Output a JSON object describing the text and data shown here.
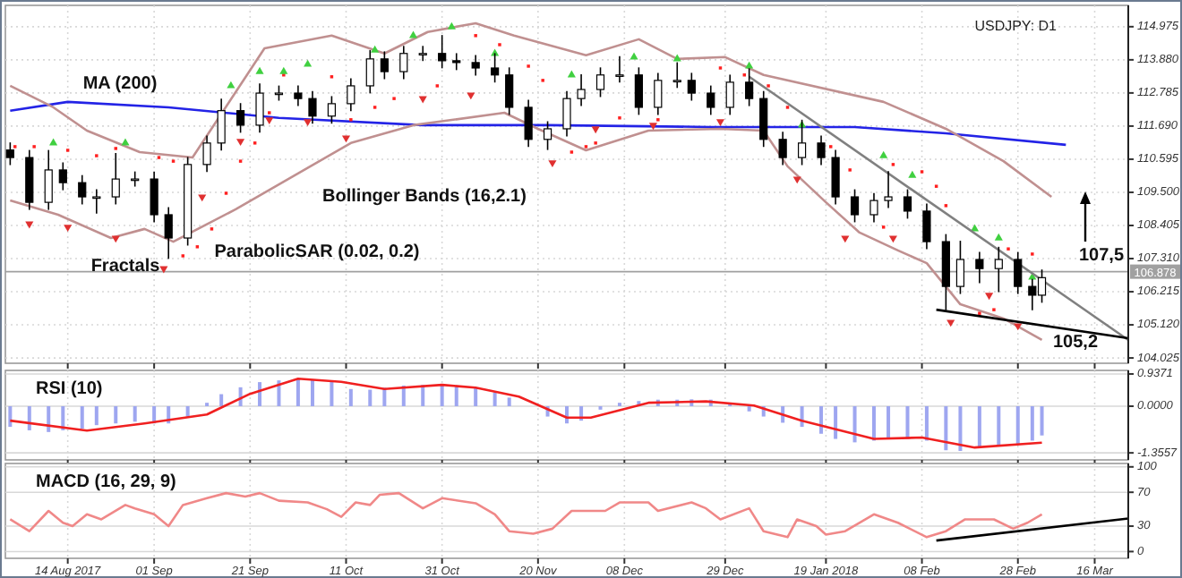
{
  "chart_data": [
    {
      "type": "candlestick",
      "title": "USDJPY: D1",
      "tick_labels": "y",
      "grid": true,
      "xlim": [
        "2017-08-01",
        "2018-03-23"
      ],
      "ylim": [
        103.85,
        115.68
      ],
      "yticks": [
        104.025,
        {
          "value": 105.12,
          "label": "105.120"
        },
        106.215,
        {
          "value": 107.31,
          "label": "107.310"
        },
        108.405,
        {
          "value": 109.5,
          "label": "109.500"
        },
        110.595,
        {
          "value": 111.69,
          "label": "111.690"
        },
        112.785,
        {
          "value": 113.88,
          "label": "113.880"
        },
        114.975
      ],
      "xticks": [
        {
          "value": "2017-08-14",
          "label": null
        },
        {
          "value": "2017-09-01",
          "label": null
        },
        {
          "value": "2017-09-21",
          "label": null
        },
        {
          "value": "2017-10-11",
          "label": null
        },
        {
          "value": "2017-10-31",
          "label": null
        },
        {
          "value": "2017-11-20",
          "label": null
        },
        {
          "value": "2017-12-08",
          "label": null
        },
        {
          "value": "2017-12-29",
          "label": null
        },
        {
          "value": "2018-01-19",
          "label": null
        },
        {
          "value": "2018-02-08",
          "label": null
        },
        {
          "value": "2018-02-28",
          "label": null
        },
        {
          "value": "2018-03-16",
          "label": null
        }
      ],
      "x": [
        "2017-08-02",
        "2017-08-06",
        "2017-08-10",
        "2017-08-13",
        "2017-08-17",
        "2017-08-20",
        "2017-08-24",
        "2017-08-28",
        "2017-09-01",
        "2017-09-04",
        "2017-09-08",
        "2017-09-12",
        "2017-09-15",
        "2017-09-19",
        "2017-09-23",
        "2017-09-27",
        "2017-10-01",
        "2017-10-04",
        "2017-10-08",
        "2017-10-12",
        "2017-10-16",
        "2017-10-19",
        "2017-10-23",
        "2017-10-27",
        "2017-10-31",
        "2017-11-03",
        "2017-11-07",
        "2017-11-11",
        "2017-11-14",
        "2017-11-18",
        "2017-11-22",
        "2017-11-26",
        "2017-11-29",
        "2017-12-03",
        "2017-12-07",
        "2017-12-11",
        "2017-12-15",
        "2017-12-19",
        "2017-12-22",
        "2017-12-26",
        "2017-12-30",
        "2018-01-03",
        "2018-01-06",
        "2018-01-10",
        "2018-01-14",
        "2018-01-18",
        "2018-01-21",
        "2018-01-25",
        "2018-01-29",
        "2018-02-01",
        "2018-02-05",
        "2018-02-09",
        "2018-02-13",
        "2018-02-16",
        "2018-02-20",
        "2018-02-24",
        "2018-02-28",
        "2018-03-03",
        "2018-03-05"
      ],
      "ohlc": [
        [
          110.9,
          111.15,
          110.4,
          110.65
        ],
        [
          110.65,
          110.9,
          108.92,
          109.17
        ],
        [
          109.17,
          110.9,
          108.92,
          110.24
        ],
        [
          110.24,
          110.49,
          109.57,
          109.82
        ],
        [
          109.82,
          110.07,
          109.1,
          109.35
        ],
        [
          109.35,
          109.6,
          108.8,
          109.35
        ],
        [
          109.35,
          110.8,
          109.1,
          109.94
        ],
        [
          109.94,
          110.19,
          109.69,
          109.94
        ],
        [
          109.94,
          110.19,
          108.51,
          108.76
        ],
        [
          108.76,
          109.01,
          107.3,
          107.99
        ],
        [
          107.99,
          110.67,
          107.74,
          110.42
        ],
        [
          110.42,
          111.38,
          110.17,
          111.13
        ],
        [
          111.13,
          112.6,
          110.88,
          112.2
        ],
        [
          112.2,
          112.45,
          111.47,
          111.72
        ],
        [
          111.72,
          113.1,
          111.47,
          112.78
        ],
        [
          112.78,
          113.03,
          112.53,
          112.78
        ],
        [
          112.78,
          113.03,
          112.35,
          112.6
        ],
        [
          112.6,
          112.85,
          111.77,
          112.02
        ],
        [
          112.02,
          112.68,
          111.77,
          112.43
        ],
        [
          112.43,
          113.27,
          112.18,
          113.02
        ],
        [
          113.02,
          114.2,
          112.77,
          113.91
        ],
        [
          113.91,
          114.16,
          113.24,
          113.49
        ],
        [
          113.49,
          114.34,
          113.24,
          114.09
        ],
        [
          114.09,
          114.34,
          113.84,
          114.09
        ],
        [
          114.09,
          114.7,
          113.6,
          113.85
        ],
        [
          113.85,
          114.1,
          113.54,
          113.79
        ],
        [
          113.79,
          114.04,
          113.36,
          113.61
        ],
        [
          113.61,
          114.1,
          113.13,
          113.38
        ],
        [
          113.38,
          113.63,
          112.06,
          112.31
        ],
        [
          112.31,
          112.56,
          111.0,
          111.25
        ],
        [
          111.25,
          111.85,
          110.9,
          111.6
        ],
        [
          111.6,
          112.85,
          111.35,
          112.6
        ],
        [
          112.6,
          113.4,
          112.35,
          112.9
        ],
        [
          112.9,
          113.63,
          112.65,
          113.38
        ],
        [
          113.38,
          114.0,
          113.13,
          113.38
        ],
        [
          113.38,
          113.63,
          112.06,
          112.31
        ],
        [
          112.31,
          113.45,
          112.06,
          113.2
        ],
        [
          113.2,
          113.8,
          112.95,
          113.2
        ],
        [
          113.2,
          113.45,
          112.53,
          112.78
        ],
        [
          112.78,
          113.03,
          112.06,
          112.31
        ],
        [
          112.31,
          113.39,
          112.06,
          113.14
        ],
        [
          113.14,
          113.6,
          112.35,
          112.6
        ],
        [
          112.6,
          112.85,
          111.0,
          111.25
        ],
        [
          111.25,
          111.5,
          110.4,
          110.65
        ],
        [
          110.65,
          111.9,
          110.4,
          111.13
        ],
        [
          111.13,
          111.38,
          110.4,
          110.65
        ],
        [
          110.65,
          110.9,
          109.1,
          109.35
        ],
        [
          109.35,
          109.6,
          108.51,
          108.76
        ],
        [
          108.76,
          109.48,
          108.51,
          109.23
        ],
        [
          109.23,
          110.2,
          108.98,
          109.35
        ],
        [
          109.35,
          109.6,
          108.63,
          108.88
        ],
        [
          108.88,
          109.13,
          107.62,
          107.87
        ],
        [
          107.87,
          108.12,
          105.6,
          106.39
        ],
        [
          106.39,
          107.9,
          106.14,
          107.28
        ],
        [
          107.28,
          107.53,
          106.5,
          106.98
        ],
        [
          106.98,
          107.7,
          106.2,
          107.28
        ],
        [
          107.28,
          107.53,
          106.14,
          106.39
        ],
        [
          106.39,
          106.64,
          105.6,
          106.1
        ],
        [
          106.1,
          106.95,
          105.85,
          106.68
        ]
      ],
      "series": [
        {
          "type": "line",
          "color": "#2323e6",
          "x": [
            "2017-08-02",
            "2017-08-14",
            "2017-09-04",
            "2017-09-27",
            "2017-10-27",
            "2017-11-22",
            "2017-12-26",
            "2018-01-25",
            "2018-02-13",
            "2018-03-10"
          ],
          "values": [
            112.2,
            112.49,
            112.31,
            111.96,
            111.72,
            111.72,
            111.66,
            111.66,
            111.45,
            111.07
          ]
        },
        {
          "type": "line",
          "color": "#c09090",
          "x": [
            "2017-08-02",
            "2017-08-11",
            "2017-08-18",
            "2017-08-29",
            "2017-09-09",
            "2017-09-24",
            "2017-10-08",
            "2017-10-19",
            "2017-10-28",
            "2017-11-07",
            "2017-11-15",
            "2017-11-30",
            "2017-12-11",
            "2017-12-19",
            "2017-12-29",
            "2018-01-06",
            "2018-01-31",
            "2018-02-13",
            "2018-02-25",
            "2018-03-07"
          ],
          "values": [
            113.02,
            112.31,
            111.54,
            110.83,
            110.65,
            114.26,
            114.68,
            114.09,
            114.8,
            115.09,
            114.68,
            114.03,
            114.56,
            113.91,
            113.97,
            113.38,
            112.49,
            111.6,
            110.53,
            109.35
          ]
        },
        {
          "type": "line",
          "color": "#c09090",
          "x": [
            "2017-08-02",
            "2017-08-12",
            "2017-08-23",
            "2017-08-30",
            "2017-09-05",
            "2017-09-18",
            "2017-10-12",
            "2017-10-25",
            "2017-11-13",
            "2017-11-20",
            "2017-11-30",
            "2017-12-13",
            "2017-12-28",
            "2018-01-06",
            "2018-01-11",
            "2018-01-19",
            "2018-01-26",
            "2018-02-03",
            "2018-02-09",
            "2018-02-16",
            "2018-02-25",
            "2018-03-05"
          ],
          "values": [
            109.23,
            108.76,
            107.99,
            108.29,
            107.87,
            108.94,
            111.13,
            111.72,
            112.13,
            111.6,
            110.89,
            111.54,
            111.6,
            111.54,
            110.36,
            109.17,
            108.17,
            107.58,
            107.16,
            105.8,
            105.33,
            104.62
          ]
        },
        {
          "type": "scatter",
          "marker": "square",
          "color": "#ff2020",
          "x": [
            "2017-08-03",
            "2017-08-07",
            "2017-08-14",
            "2017-08-20",
            "2017-08-24",
            "2017-09-02",
            "2017-09-05",
            "2017-09-07",
            "2017-09-10",
            "2017-09-13",
            "2017-09-16",
            "2017-09-19",
            "2017-09-22",
            "2017-09-25",
            "2017-09-28",
            "2017-10-08",
            "2017-10-12",
            "2017-10-17",
            "2017-10-21",
            "2017-10-30",
            "2017-11-07",
            "2017-11-12",
            "2017-11-18",
            "2017-11-21",
            "2017-11-27",
            "2017-11-30",
            "2017-12-02",
            "2017-12-07",
            "2017-12-15",
            "2017-12-28",
            "2018-01-02",
            "2018-01-07",
            "2018-01-11",
            "2018-01-20",
            "2018-01-24",
            "2018-01-31",
            "2018-02-02",
            "2018-02-08",
            "2018-02-11",
            "2018-02-13",
            "2018-02-20",
            "2018-02-23",
            "2018-02-26",
            "2018-03-03"
          ],
          "values": [
            111.01,
            111.01,
            110.89,
            110.71,
            110.95,
            110.65,
            110.53,
            107.4,
            107.7,
            108.29,
            109.47,
            110.53,
            111.13,
            112.13,
            113.38,
            113.32,
            111.9,
            112.31,
            112.6,
            113.02,
            114.68,
            114.38,
            113.67,
            113.2,
            110.83,
            111.01,
            111.13,
            111.96,
            111.9,
            113.61,
            113.38,
            113.02,
            112.31,
            111.01,
            110.24,
            108.35,
            110.42,
            110.18,
            109.7,
            109.06,
            105.5,
            105.62,
            107.63,
            107.46
          ]
        },
        {
          "type": "scatter",
          "marker": "triangle",
          "color": "#40d040",
          "x": [
            "2017-08-11",
            "2017-08-26",
            "2017-09-17",
            "2017-09-23",
            "2017-09-28",
            "2017-10-03",
            "2017-10-17",
            "2017-10-25",
            "2017-11-02",
            "2017-11-11",
            "2017-11-27",
            "2017-12-10",
            "2017-12-19",
            "2018-01-03",
            "2018-01-14",
            "2018-01-31",
            "2018-02-06",
            "2018-02-19",
            "2018-02-24",
            "2018-03-03"
          ],
          "values": [
            111.13,
            111.13,
            113.02,
            113.49,
            113.49,
            113.73,
            114.2,
            114.68,
            114.97,
            114.09,
            113.38,
            113.97,
            113.91,
            113.67,
            111.72,
            110.71,
            110.06,
            108.29,
            107.99,
            106.69
          ]
        },
        {
          "type": "scatter",
          "marker": "triangle-down",
          "color": "#e03030",
          "x": [
            "2017-08-06",
            "2017-08-14",
            "2017-08-24",
            "2017-09-03",
            "2017-09-11",
            "2017-09-19",
            "2017-09-25",
            "2017-10-03",
            "2017-10-11",
            "2017-10-27",
            "2017-11-06",
            "2017-11-23",
            "2017-12-02",
            "2017-12-14",
            "2017-12-28",
            "2018-01-13",
            "2018-01-23",
            "2018-02-02",
            "2018-02-14",
            "2018-02-22",
            "2018-02-28"
          ],
          "values": [
            108.46,
            108.35,
            107.99,
            106.98,
            109.35,
            111.19,
            111.9,
            111.84,
            111.3,
            112.6,
            112.72,
            110.48,
            111.6,
            111.72,
            111.84,
            109.94,
            107.99,
            107.99,
            105.21,
            106.1,
            105.09
          ]
        },
        {
          "type": "line",
          "color": "#808080",
          "x": [
            "2018-01-03",
            "2018-03-23"
          ],
          "values": [
            113.32,
            104.62
          ]
        },
        {
          "type": "line",
          "color": "#000000",
          "x": [
            "2018-02-11",
            "2018-03-23"
          ],
          "values": [
            105.62,
            104.68
          ]
        }
      ],
      "ref_lines": [
        {
          "axis": "y",
          "value": 106.878,
          "label": "106.878",
          "color": "#a0a0a0"
        }
      ],
      "annotations": [
        "MA (200)",
        "Bollinger Bands (16,2.1)",
        "ParabolicSAR (0.02, 0.2)",
        "Fractals",
        "107,5",
        {
          "text": "105,2",
          "x": "2018-03-12",
          "y": 105.2
        }
      ]
    },
    {
      "type": "bar",
      "title": "RSI (10)",
      "tick_labels": "y",
      "grid": true,
      "xlim": [
        "2017-08-01",
        "2018-03-23"
      ],
      "ylim": [
        -1.56,
        1.04
      ],
      "yticks": [
        0.9371,
        {
          "value": 0,
          "label": "0.0000"
        },
        -1.3557
      ],
      "xticks": [
        {
          "value": "2017-08-14",
          "label": null
        },
        {
          "value": "2017-09-01",
          "label": null
        },
        {
          "value": "2017-09-21",
          "label": null
        },
        {
          "value": "2017-10-11",
          "label": null
        },
        {
          "value": "2017-10-31",
          "label": null
        },
        {
          "value": "2017-11-20",
          "label": null
        },
        {
          "value": "2017-12-08",
          "label": null
        },
        {
          "value": "2017-12-29",
          "label": null
        },
        {
          "value": "2018-01-19",
          "label": null
        },
        {
          "value": "2018-02-08",
          "label": null
        },
        {
          "value": "2018-02-28",
          "label": null
        },
        {
          "value": "2018-03-16",
          "label": null
        }
      ],
      "x": [
        "2017-08-02",
        "2017-08-06",
        "2017-08-10",
        "2017-08-13",
        "2017-08-17",
        "2017-08-20",
        "2017-08-24",
        "2017-08-28",
        "2017-09-01",
        "2017-09-04",
        "2017-09-08",
        "2017-09-12",
        "2017-09-15",
        "2017-09-19",
        "2017-09-23",
        "2017-09-27",
        "2017-10-01",
        "2017-10-04",
        "2017-10-08",
        "2017-10-12",
        "2017-10-16",
        "2017-10-19",
        "2017-10-23",
        "2017-10-27",
        "2017-10-31",
        "2017-11-03",
        "2017-11-07",
        "2017-11-11",
        "2017-11-14",
        "2017-11-18",
        "2017-11-22",
        "2017-11-26",
        "2017-11-29",
        "2017-12-03",
        "2017-12-07",
        "2017-12-11",
        "2017-12-15",
        "2017-12-19",
        "2017-12-22",
        "2017-12-26",
        "2017-12-30",
        "2018-01-03",
        "2018-01-06",
        "2018-01-10",
        "2018-01-14",
        "2018-01-18",
        "2018-01-21",
        "2018-01-25",
        "2018-01-29",
        "2018-02-01",
        "2018-02-05",
        "2018-02-09",
        "2018-02-13",
        "2018-02-16",
        "2018-02-20",
        "2018-02-24",
        "2018-02-28",
        "2018-03-03",
        "2018-03-05"
      ],
      "series": [
        {
          "type": "bar",
          "color": "#9ea6f0",
          "values": [
            -0.6,
            -0.7,
            -0.75,
            -0.7,
            -0.65,
            -0.55,
            -0.5,
            -0.45,
            -0.5,
            -0.5,
            -0.3,
            0.1,
            0.35,
            0.55,
            0.7,
            0.75,
            0.8,
            0.78,
            0.71,
            0.5,
            0.48,
            0.54,
            0.6,
            0.62,
            0.62,
            0.6,
            0.54,
            0.4,
            0.25,
            0.0,
            -0.3,
            -0.5,
            -0.42,
            -0.1,
            0.1,
            0.15,
            0.19,
            0.19,
            0.2,
            0.19,
            0.1,
            -0.15,
            -0.3,
            -0.48,
            -0.6,
            -0.8,
            -0.95,
            -1.05,
            -1.0,
            -0.95,
            -0.95,
            -1.0,
            -1.28,
            -1.3,
            -1.2,
            -1.15,
            -1.1,
            -1.0,
            -0.85
          ]
        },
        {
          "type": "line",
          "color": "#f02020",
          "x": [
            "2017-08-02",
            "2017-08-18",
            "2017-08-30",
            "2017-09-12",
            "2017-09-21",
            "2017-10-01",
            "2017-10-10",
            "2017-10-19",
            "2017-10-31",
            "2017-11-07",
            "2017-11-16",
            "2017-11-26",
            "2017-12-01",
            "2017-12-13",
            "2017-12-25",
            "2018-01-04",
            "2018-01-14",
            "2018-01-29",
            "2018-02-08",
            "2018-02-19",
            "2018-03-05"
          ],
          "values": [
            -0.42,
            -0.71,
            -0.5,
            -0.24,
            0.36,
            0.8,
            0.71,
            0.5,
            0.62,
            0.54,
            0.28,
            -0.33,
            -0.33,
            0.1,
            0.14,
            0.02,
            -0.42,
            -0.95,
            -0.91,
            -1.2,
            -1.06
          ]
        }
      ]
    },
    {
      "type": "line",
      "title": "MACD (16, 29, 9)",
      "grid": true,
      "xlim": [
        "2017-08-01",
        "2018-03-23"
      ],
      "ylim": [
        -8,
        104
      ],
      "yticks": [
        0,
        30,
        70,
        100
      ],
      "xticks": [
        {
          "value": "2017-08-14",
          "label": "14 Aug 2017"
        },
        {
          "value": "2017-09-01",
          "label": "01 Sep"
        },
        {
          "value": "2017-09-21",
          "label": "21 Sep"
        },
        {
          "value": "2017-10-11",
          "label": "11 Oct"
        },
        {
          "value": "2017-10-31",
          "label": "31 Oct"
        },
        {
          "value": "2017-11-20",
          "label": "20 Nov"
        },
        {
          "value": "2017-12-08",
          "label": "08 Dec"
        },
        {
          "value": "2017-12-29",
          "label": "29 Dec"
        },
        {
          "value": "2018-01-19",
          "label": "19 Jan 2018"
        },
        {
          "value": "2018-02-08",
          "label": "08 Feb"
        },
        {
          "value": "2018-02-28",
          "label": "28 Feb"
        },
        {
          "value": "2018-03-16",
          "label": "16 Mar"
        }
      ],
      "series": [
        {
          "color": "#f08888",
          "x": [
            "2017-08-02",
            "2017-08-06",
            "2017-08-10",
            "2017-08-13",
            "2017-08-15",
            "2017-08-18",
            "2017-08-21",
            "2017-08-26",
            "2017-08-28",
            "2017-09-01",
            "2017-09-04",
            "2017-09-07",
            "2017-09-12",
            "2017-09-16",
            "2017-09-20",
            "2017-09-23",
            "2017-09-27",
            "2017-10-03",
            "2017-10-07",
            "2017-10-10",
            "2017-10-13",
            "2017-10-16",
            "2017-10-18",
            "2017-10-22",
            "2017-10-27",
            "2017-10-31",
            "2017-11-07",
            "2017-11-11",
            "2017-11-14",
            "2017-11-19",
            "2017-11-23",
            "2017-11-27",
            "2017-12-01",
            "2017-12-04",
            "2017-12-07",
            "2017-12-13",
            "2017-12-15",
            "2017-12-22",
            "2017-12-25",
            "2017-12-28",
            "2018-01-03",
            "2018-01-06",
            "2018-01-11",
            "2018-01-13",
            "2018-01-17",
            "2018-01-19",
            "2018-01-23",
            "2018-01-29",
            "2018-02-03",
            "2018-02-09",
            "2018-02-13",
            "2018-02-17",
            "2018-02-23",
            "2018-02-27",
            "2018-03-02",
            "2018-03-05"
          ],
          "values": [
            38,
            24,
            48,
            34,
            30,
            44,
            38,
            55,
            51,
            44,
            30,
            55,
            63,
            69,
            65,
            69,
            60,
            58,
            50,
            41,
            58,
            55,
            67,
            69,
            51,
            63,
            57,
            44,
            24,
            21,
            27,
            48,
            48,
            48,
            58,
            58,
            48,
            58,
            51,
            38,
            51,
            24,
            17,
            38,
            30,
            20,
            24,
            44,
            34,
            17,
            24,
            38,
            38,
            27,
            34,
            44
          ]
        },
        {
          "color": "#000000",
          "x": [
            "2018-02-11",
            "2018-03-23"
          ],
          "values": [
            13,
            39
          ]
        }
      ]
    }
  ]
}
